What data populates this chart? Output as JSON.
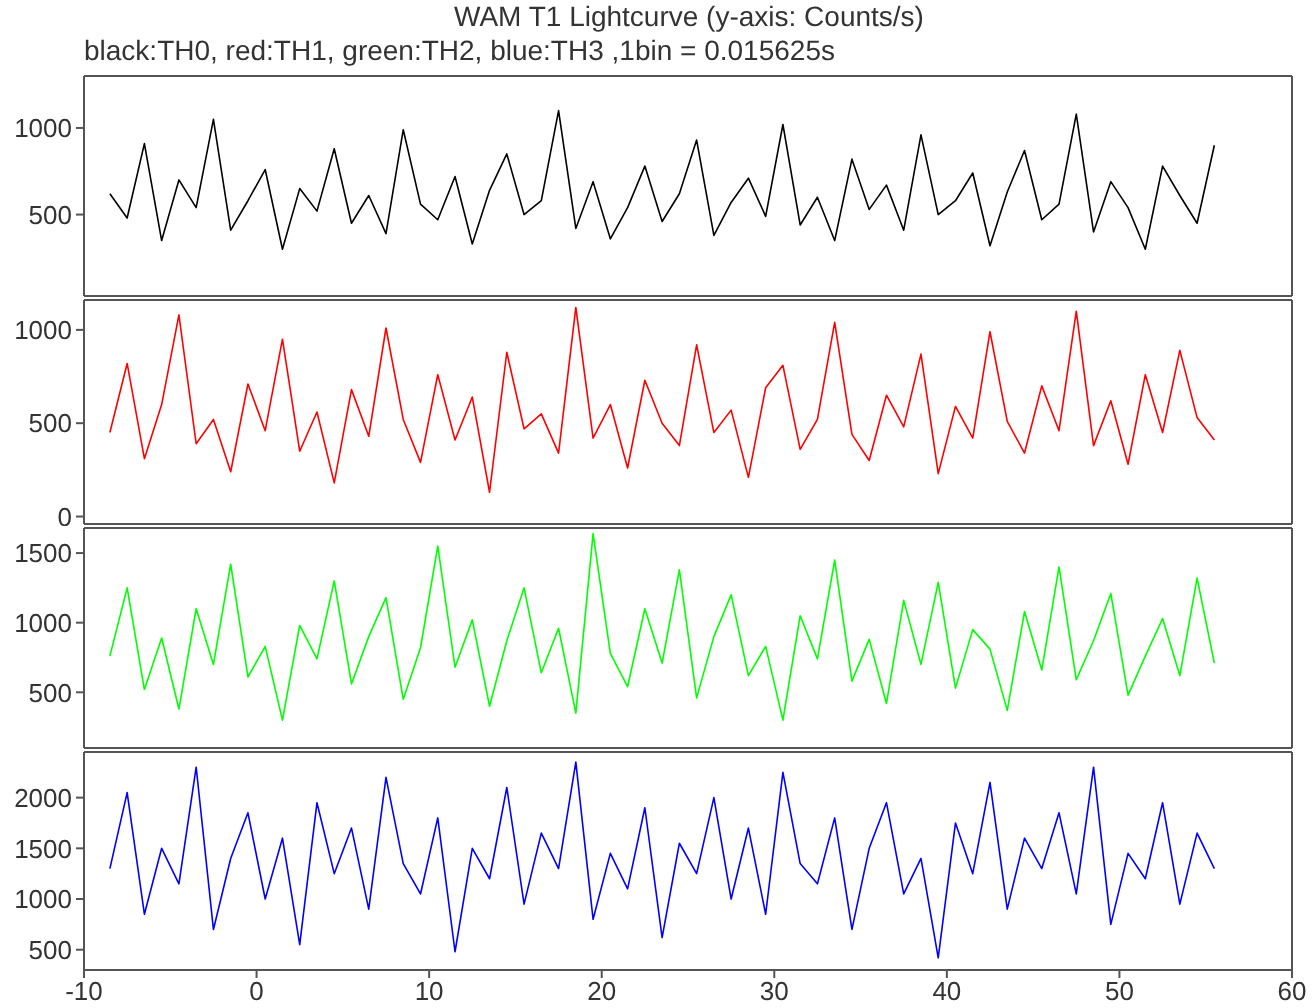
{
  "chart_data": [
    {
      "type": "line",
      "title": "WAM T1 Lightcurve (y-axis: Counts/s)",
      "subtitle": "black:TH0, red:TH1, green:TH2, blue:TH3 ,1bin = 0.015625s",
      "tick_labels": "y",
      "xlim": [
        -10,
        60
      ],
      "xticks": [
        -10,
        0,
        10,
        20,
        30,
        40,
        50,
        60
      ],
      "ylim": [
        30,
        1300
      ],
      "yticks": [
        500,
        1000
      ],
      "x": [
        -8.5,
        -7.5,
        -6.5,
        -5.5,
        -4.5,
        -3.5,
        -2.5,
        -1.5,
        -0.5,
        0.5,
        1.5,
        2.5,
        3.5,
        4.5,
        5.5,
        6.5,
        7.5,
        8.5,
        9.5,
        10.5,
        11.5,
        12.5,
        13.5,
        14.5,
        15.5,
        16.5,
        17.5,
        18.5,
        19.5,
        20.5,
        21.5,
        22.5,
        23.5,
        24.5,
        25.5,
        26.5,
        27.5,
        28.5,
        29.5,
        30.5,
        31.5,
        32.5,
        33.5,
        34.5,
        35.5,
        36.5,
        37.5,
        38.5,
        39.5,
        40.5,
        41.5,
        42.5,
        43.5,
        44.5,
        45.5,
        46.5,
        47.5,
        48.5,
        49.5,
        50.5,
        51.5,
        52.5,
        53.5,
        54.5,
        55.5
      ],
      "series": [
        {
          "color": "#000000",
          "values": [
            620,
            480,
            910,
            350,
            700,
            540,
            1050,
            410,
            580,
            760,
            300,
            650,
            520,
            880,
            450,
            610,
            390,
            990,
            560,
            470,
            720,
            330,
            640,
            850,
            500,
            580,
            1100,
            420,
            690,
            360,
            540,
            780,
            460,
            620,
            930,
            380,
            570,
            710,
            490,
            1020,
            440,
            600,
            350,
            820,
            530,
            670,
            410,
            960,
            500,
            580,
            740,
            320,
            630,
            870,
            470,
            560,
            1080,
            400,
            690,
            540,
            300,
            780,
            610,
            450,
            900
          ]
        }
      ]
    },
    {
      "type": "line",
      "tick_labels": "y",
      "xlim": [
        -10,
        60
      ],
      "xticks": [
        -10,
        0,
        10,
        20,
        30,
        40,
        50,
        60
      ],
      "ylim": [
        -40,
        1160
      ],
      "yticks": [
        0,
        500,
        1000
      ],
      "x": [
        -8.5,
        -7.5,
        -6.5,
        -5.5,
        -4.5,
        -3.5,
        -2.5,
        -1.5,
        -0.5,
        0.5,
        1.5,
        2.5,
        3.5,
        4.5,
        5.5,
        6.5,
        7.5,
        8.5,
        9.5,
        10.5,
        11.5,
        12.5,
        13.5,
        14.5,
        15.5,
        16.5,
        17.5,
        18.5,
        19.5,
        20.5,
        21.5,
        22.5,
        23.5,
        24.5,
        25.5,
        26.5,
        27.5,
        28.5,
        29.5,
        30.5,
        31.5,
        32.5,
        33.5,
        34.5,
        35.5,
        36.5,
        37.5,
        38.5,
        39.5,
        40.5,
        41.5,
        42.5,
        43.5,
        44.5,
        45.5,
        46.5,
        47.5,
        48.5,
        49.5,
        50.5,
        51.5,
        52.5,
        53.5,
        54.5,
        55.5
      ],
      "series": [
        {
          "color": "#ff0000",
          "values": [
            450,
            820,
            310,
            600,
            1080,
            390,
            520,
            240,
            710,
            460,
            950,
            350,
            560,
            180,
            680,
            430,
            1010,
            520,
            290,
            760,
            410,
            640,
            130,
            880,
            470,
            550,
            340,
            1120,
            420,
            600,
            260,
            730,
            500,
            380,
            920,
            450,
            570,
            210,
            690,
            810,
            360,
            520,
            1040,
            440,
            300,
            650,
            480,
            870,
            230,
            590,
            420,
            990,
            510,
            340,
            700,
            460,
            1100,
            380,
            620,
            280,
            760,
            450,
            890,
            530,
            410
          ]
        }
      ]
    },
    {
      "type": "line",
      "tick_labels": "y",
      "xlim": [
        -10,
        60
      ],
      "xticks": [
        -10,
        0,
        10,
        20,
        30,
        40,
        50,
        60
      ],
      "ylim": [
        100,
        1680
      ],
      "yticks": [
        500,
        1000,
        1500
      ],
      "x": [
        -8.5,
        -7.5,
        -6.5,
        -5.5,
        -4.5,
        -3.5,
        -2.5,
        -1.5,
        -0.5,
        0.5,
        1.5,
        2.5,
        3.5,
        4.5,
        5.5,
        6.5,
        7.5,
        8.5,
        9.5,
        10.5,
        11.5,
        12.5,
        13.5,
        14.5,
        15.5,
        16.5,
        17.5,
        18.5,
        19.5,
        20.5,
        21.5,
        22.5,
        23.5,
        24.5,
        25.5,
        26.5,
        27.5,
        28.5,
        29.5,
        30.5,
        31.5,
        32.5,
        33.5,
        34.5,
        35.5,
        36.5,
        37.5,
        38.5,
        39.5,
        40.5,
        41.5,
        42.5,
        43.5,
        44.5,
        45.5,
        46.5,
        47.5,
        48.5,
        49.5,
        50.5,
        51.5,
        52.5,
        53.5,
        54.5,
        55.5
      ],
      "series": [
        {
          "color": "#00ff00",
          "values": [
            760,
            1250,
            520,
            890,
            380,
            1100,
            700,
            1420,
            610,
            830,
            300,
            980,
            740,
            1300,
            560,
            900,
            1180,
            450,
            820,
            1550,
            680,
            1020,
            400,
            870,
            1250,
            640,
            960,
            350,
            1640,
            780,
            540,
            1100,
            710,
            1380,
            460,
            900,
            1200,
            620,
            830,
            300,
            1050,
            740,
            1450,
            580,
            880,
            420,
            1160,
            700,
            1290,
            530,
            950,
            810,
            370,
            1080,
            660,
            1400,
            590,
            870,
            1210,
            480,
            760,
            1030,
            620,
            1320,
            710
          ]
        }
      ]
    },
    {
      "type": "line",
      "xlim": [
        -10,
        60
      ],
      "xticks": [
        -10,
        0,
        10,
        20,
        30,
        40,
        50,
        60
      ],
      "ylim": [
        300,
        2450
      ],
      "yticks": [
        500,
        1000,
        1500,
        2000
      ],
      "x": [
        -8.5,
        -7.5,
        -6.5,
        -5.5,
        -4.5,
        -3.5,
        -2.5,
        -1.5,
        -0.5,
        0.5,
        1.5,
        2.5,
        3.5,
        4.5,
        5.5,
        6.5,
        7.5,
        8.5,
        9.5,
        10.5,
        11.5,
        12.5,
        13.5,
        14.5,
        15.5,
        16.5,
        17.5,
        18.5,
        19.5,
        20.5,
        21.5,
        22.5,
        23.5,
        24.5,
        25.5,
        26.5,
        27.5,
        28.5,
        29.5,
        30.5,
        31.5,
        32.5,
        33.5,
        34.5,
        35.5,
        36.5,
        37.5,
        38.5,
        39.5,
        40.5,
        41.5,
        42.5,
        43.5,
        44.5,
        45.5,
        46.5,
        47.5,
        48.5,
        49.5,
        50.5,
        51.5,
        52.5,
        53.5,
        54.5,
        55.5
      ],
      "series": [
        {
          "color": "#0000ff",
          "values": [
            1300,
            2050,
            850,
            1500,
            1150,
            2300,
            700,
            1400,
            1850,
            1000,
            1600,
            550,
            1950,
            1250,
            1700,
            900,
            2200,
            1350,
            1050,
            1800,
            480,
            1500,
            1200,
            2100,
            950,
            1650,
            1300,
            2350,
            800,
            1450,
            1100,
            1900,
            620,
            1550,
            1250,
            2000,
            1000,
            1700,
            850,
            2250,
            1350,
            1150,
            1800,
            700,
            1500,
            1950,
            1050,
            1400,
            420,
            1750,
            1250,
            2150,
            900,
            1600,
            1300,
            1850,
            1050,
            2300,
            750,
            1450,
            1200,
            1950,
            950,
            1650,
            1300
          ]
        }
      ]
    }
  ]
}
